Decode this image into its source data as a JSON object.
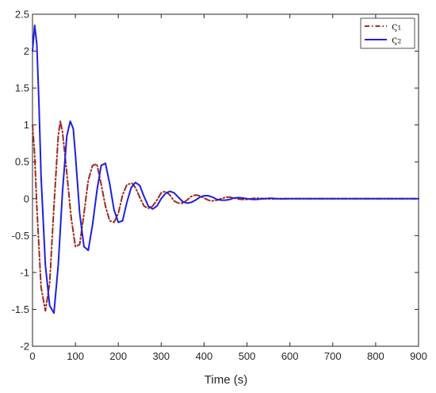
{
  "chart_data": {
    "type": "line",
    "xlabel": "Time (s)",
    "ylabel": "",
    "xlim": [
      0,
      900
    ],
    "ylim": [
      -2,
      2.5
    ],
    "xticks": [
      0,
      100,
      200,
      300,
      400,
      500,
      600,
      700,
      800,
      900
    ],
    "yticks": [
      -2,
      -1.5,
      -1,
      -0.5,
      0,
      0.5,
      1,
      1.5,
      2,
      2.5
    ],
    "xtick_labels": [
      "0",
      "100",
      "200",
      "300",
      "400",
      "500",
      "600",
      "700",
      "800",
      "900"
    ],
    "ytick_labels": [
      "-2",
      "-1.5",
      "-1",
      "-0.5",
      "0",
      "0.5",
      "1",
      "1.5",
      "2",
      "2.5"
    ],
    "grid": false,
    "legend_position": "top-right",
    "series": [
      {
        "name": "ς₁",
        "color": "#a0281e",
        "style": "dash-dot",
        "x": [
          0,
          5,
          10,
          20,
          30,
          40,
          50,
          60,
          65,
          70,
          80,
          90,
          100,
          110,
          120,
          130,
          140,
          150,
          160,
          170,
          180,
          190,
          200,
          210,
          220,
          232,
          240,
          250,
          260,
          270,
          280,
          290,
          300,
          310,
          320,
          330,
          340,
          350,
          360,
          370,
          380,
          390,
          400,
          410,
          420,
          430,
          440,
          450,
          460,
          470,
          480,
          490,
          500,
          510,
          520,
          530,
          540,
          550,
          560,
          570,
          580,
          600,
          700,
          800,
          900
        ],
        "y": [
          1.0,
          0.6,
          -0.1,
          -1.2,
          -1.52,
          -1.15,
          -0.1,
          0.85,
          1.05,
          0.9,
          0.35,
          -0.25,
          -0.65,
          -0.62,
          -0.2,
          0.25,
          0.45,
          0.47,
          0.2,
          -0.1,
          -0.3,
          -0.32,
          -0.2,
          0.05,
          0.19,
          0.21,
          0.15,
          0.02,
          -0.1,
          -0.13,
          -0.1,
          -0.02,
          0.08,
          0.1,
          0.05,
          -0.03,
          -0.06,
          -0.06,
          -0.02,
          0.03,
          0.05,
          0.04,
          0.01,
          -0.02,
          -0.03,
          -0.02,
          0.0,
          0.02,
          0.02,
          0.01,
          -0.005,
          -0.01,
          -0.01,
          0.0,
          0.008,
          0.006,
          0.0,
          -0.004,
          -0.003,
          0.0,
          0.002,
          0.0,
          0.0,
          0.0,
          0.0
        ]
      },
      {
        "name": "ς₂",
        "color": "#1e1ee0",
        "style": "solid",
        "x": [
          0,
          5,
          10,
          15,
          20,
          30,
          40,
          50,
          60,
          70,
          80,
          88,
          95,
          100,
          110,
          120,
          130,
          140,
          150,
          160,
          170,
          180,
          190,
          200,
          210,
          220,
          230,
          240,
          250,
          260,
          270,
          280,
          290,
          300,
          310,
          320,
          330,
          340,
          350,
          360,
          370,
          380,
          390,
          400,
          410,
          420,
          430,
          440,
          450,
          460,
          470,
          480,
          490,
          500,
          510,
          520,
          530,
          540,
          550,
          560,
          570,
          580,
          600,
          700,
          800,
          900
        ],
        "y": [
          2.0,
          2.35,
          2.1,
          1.3,
          0.3,
          -0.9,
          -1.45,
          -1.55,
          -0.9,
          0.1,
          0.85,
          1.05,
          0.95,
          0.6,
          -0.2,
          -0.65,
          -0.7,
          -0.35,
          0.1,
          0.45,
          0.48,
          0.2,
          -0.15,
          -0.32,
          -0.3,
          -0.05,
          0.15,
          0.22,
          0.18,
          0.03,
          -0.1,
          -0.14,
          -0.1,
          0.0,
          0.07,
          0.1,
          0.08,
          0.02,
          -0.04,
          -0.06,
          -0.05,
          -0.02,
          0.02,
          0.04,
          0.04,
          0.02,
          -0.01,
          -0.02,
          -0.02,
          -0.01,
          0.01,
          0.015,
          0.01,
          0.0,
          -0.008,
          -0.01,
          -0.005,
          0.0,
          0.005,
          0.005,
          0.0,
          -0.003,
          0.0,
          0.0,
          0.0,
          0.0
        ]
      }
    ]
  }
}
